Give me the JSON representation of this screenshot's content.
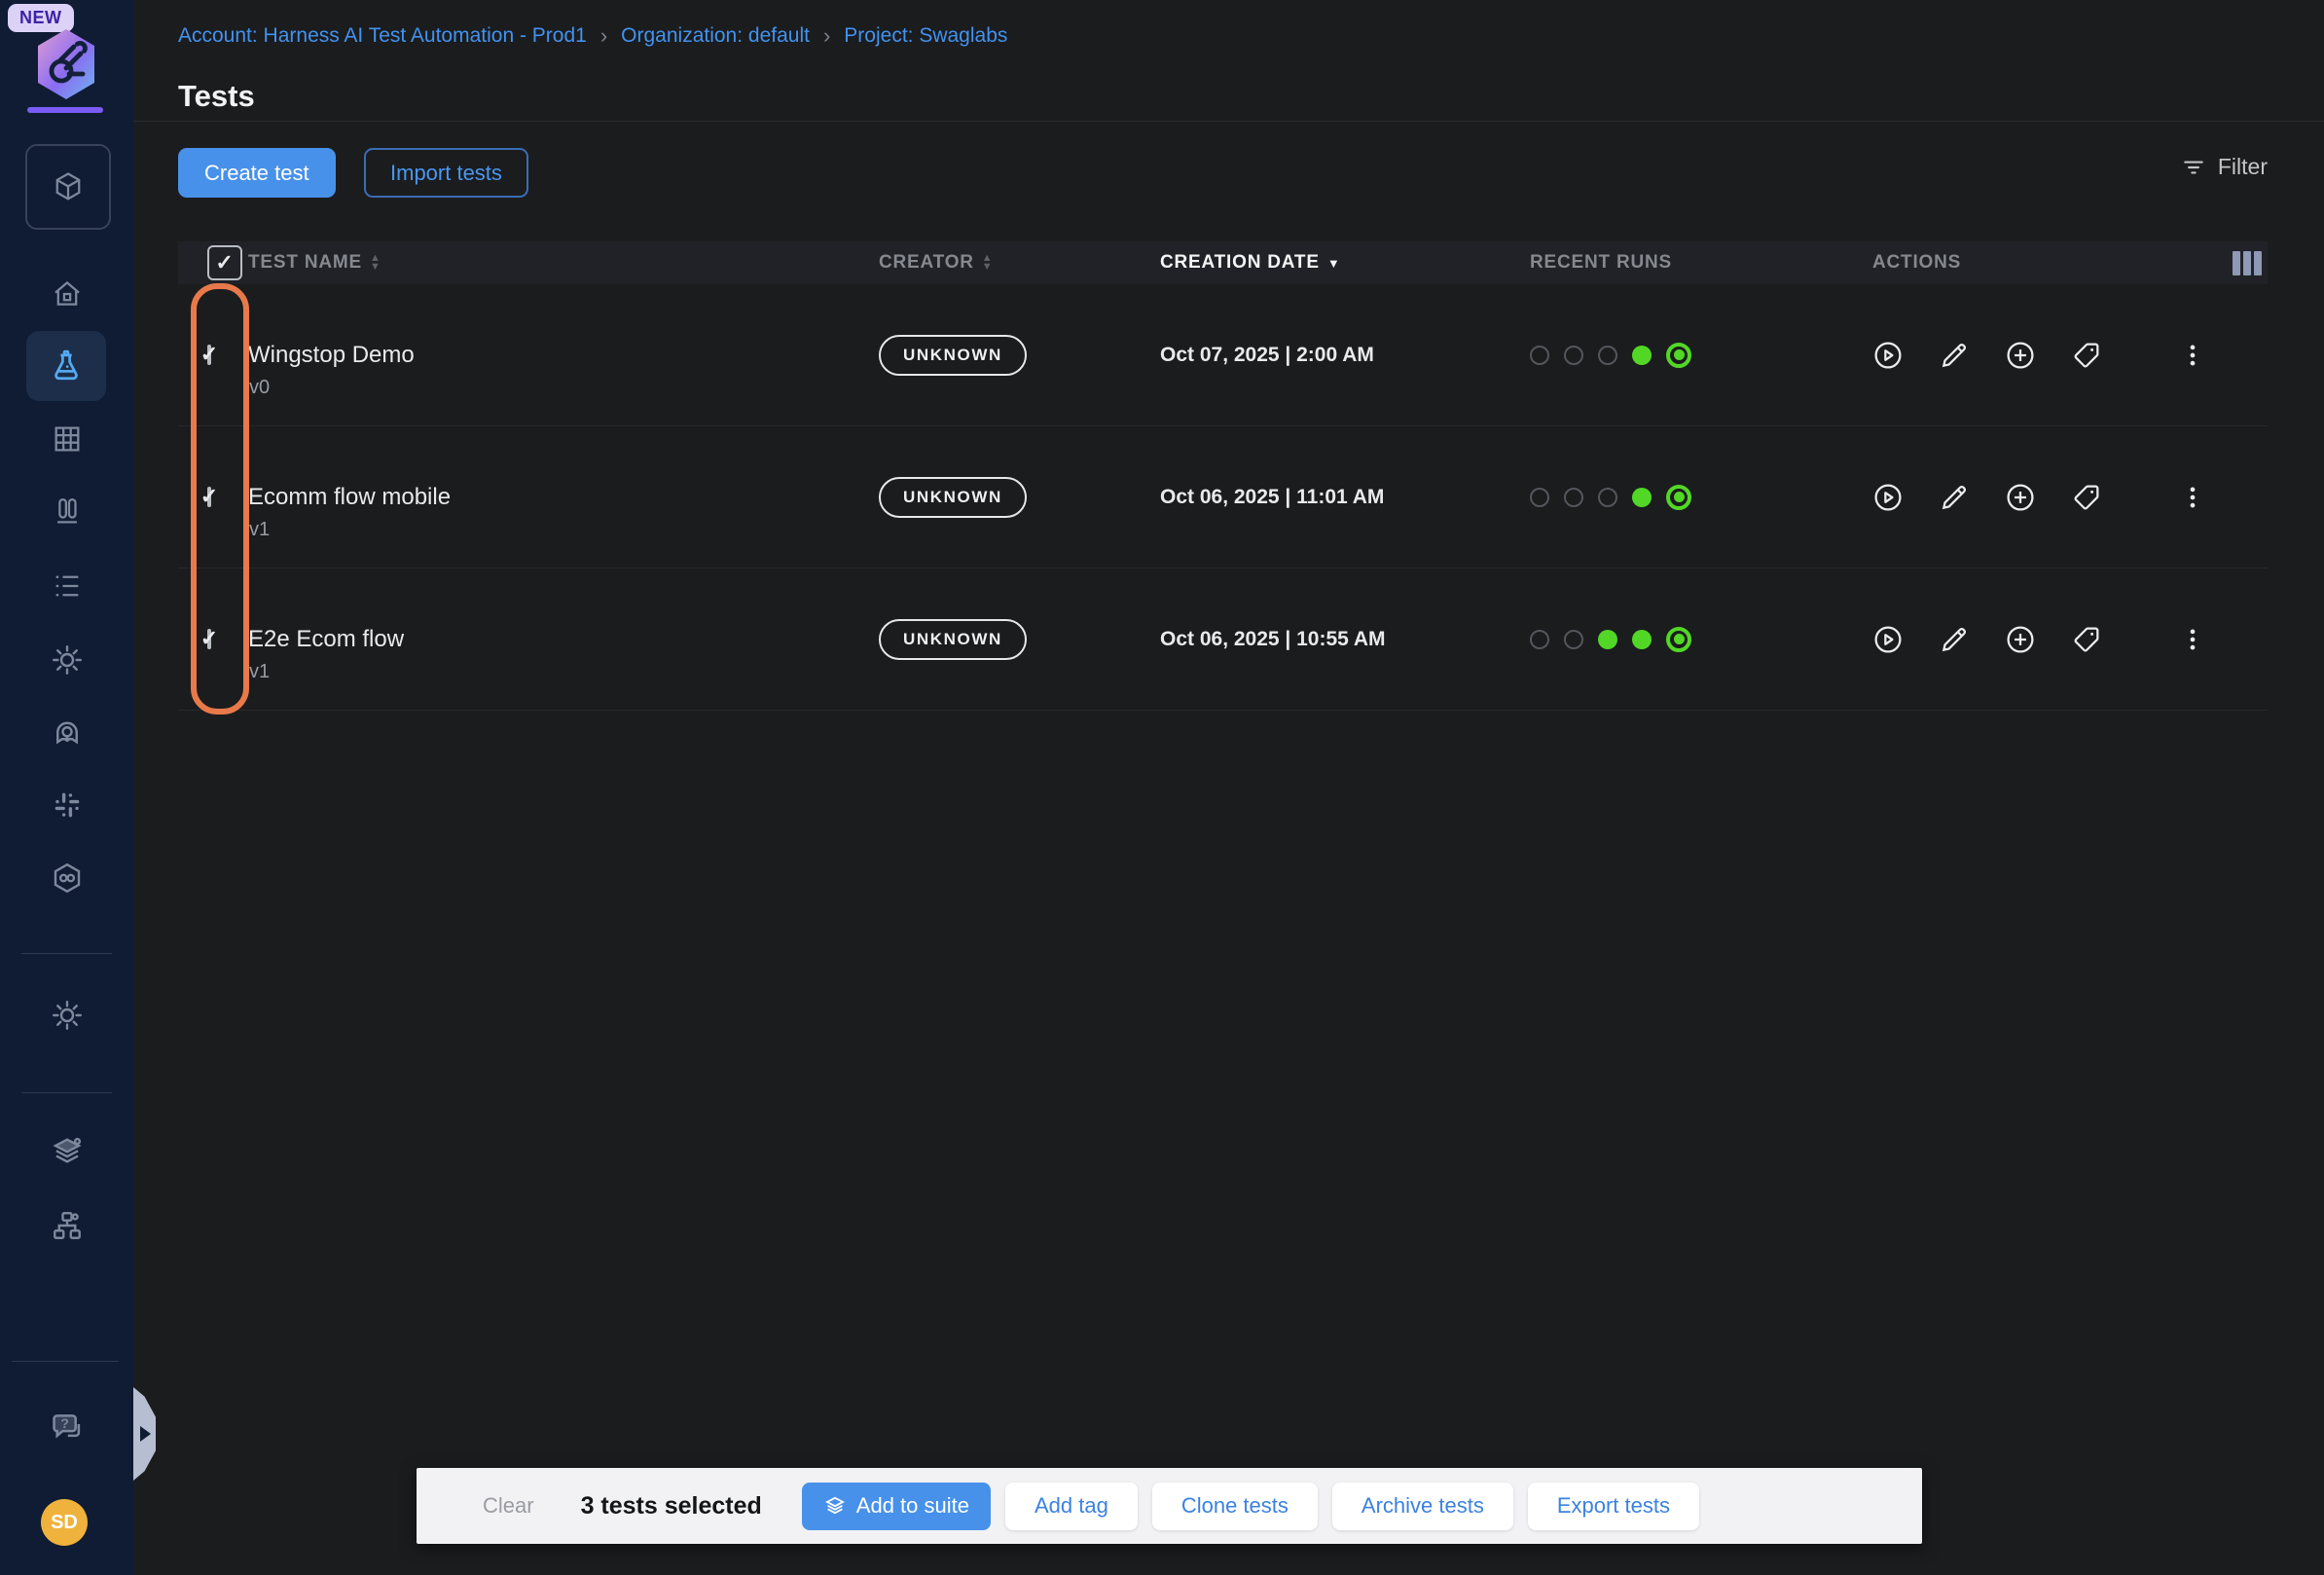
{
  "sidebar": {
    "new_badge": "NEW",
    "avatar_initials": "SD"
  },
  "breadcrumb": {
    "items": [
      "Account: Harness AI Test Automation - Prod1",
      "Organization: default",
      "Project: Swaglabs"
    ],
    "separator": "›"
  },
  "page": {
    "title": "Tests"
  },
  "toolbar": {
    "create_label": "Create test",
    "import_label": "Import tests",
    "filter_label": "Filter"
  },
  "table": {
    "headers": {
      "name": "TEST NAME",
      "creator": "CREATOR",
      "date": "CREATION DATE",
      "runs": "RECENT RUNS",
      "actions": "ACTIONS"
    },
    "rows": [
      {
        "name": "Wingstop Demo",
        "version": "v0",
        "creator": "UNKNOWN",
        "date": "Oct 07, 2025 | 2:00 AM",
        "runs": [
          "empty",
          "empty",
          "empty",
          "filled",
          "ringed"
        ]
      },
      {
        "name": "Ecomm flow mobile",
        "version": "v1",
        "creator": "UNKNOWN",
        "date": "Oct 06, 2025 | 11:01 AM",
        "runs": [
          "empty",
          "empty",
          "empty",
          "filled",
          "ringed"
        ]
      },
      {
        "name": "E2e Ecom flow",
        "version": "v1",
        "creator": "UNKNOWN",
        "date": "Oct 06, 2025 | 10:55 AM",
        "runs": [
          "empty",
          "empty",
          "filled",
          "filled",
          "ringed"
        ]
      }
    ]
  },
  "selection_bar": {
    "clear_label": "Clear",
    "selected_text": "3 tests selected",
    "primary_label": "Add to suite",
    "secondary": [
      "Add tag",
      "Clone tests",
      "Archive tests",
      "Export tests"
    ]
  },
  "icons": {
    "run_status_colors": {
      "success_green": "#52d726",
      "empty_gray": "#53565c"
    },
    "annotation_orange": "#e8794a",
    "accent_blue": "#4791ea",
    "link_blue": "#4292f0",
    "avatar_yellow": "#efb23c"
  }
}
